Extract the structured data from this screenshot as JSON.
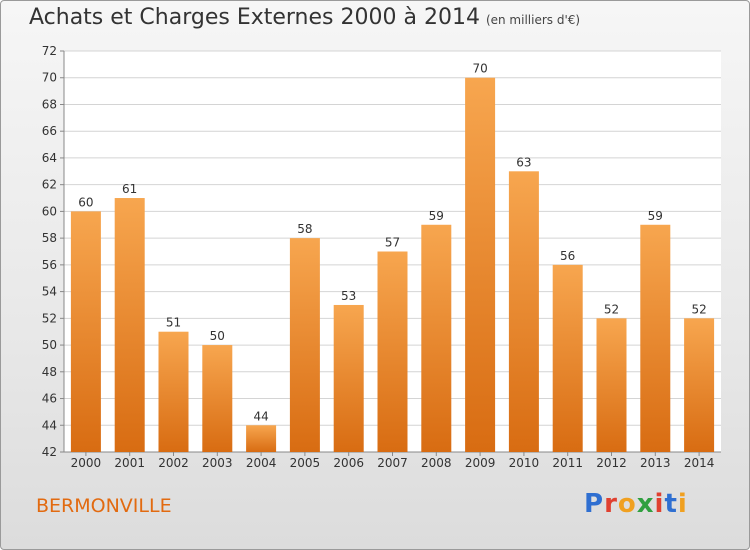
{
  "header": {
    "title": "Achats et Charges Externes 2000 à 2014",
    "subtitle": "(en milliers d'€)"
  },
  "footer": {
    "location": "BERMONVILLE",
    "logo_text": "Proxiti"
  },
  "colors": {
    "bar_light": "#f7a64f",
    "bar_dark": "#d86c12",
    "location_text": "#e26a10",
    "logo_letters": [
      "#2f6fd1",
      "#e04030",
      "#f0a020",
      "#30a040",
      "#e04030",
      "#2f6fd1",
      "#f0a020"
    ]
  },
  "chart_data": {
    "type": "bar",
    "categories": [
      "2000",
      "2001",
      "2002",
      "2003",
      "2004",
      "2005",
      "2006",
      "2007",
      "2008",
      "2009",
      "2010",
      "2011",
      "2012",
      "2013",
      "2014"
    ],
    "values": [
      60,
      61,
      51,
      50,
      44,
      58,
      53,
      57,
      59,
      70,
      63,
      56,
      52,
      59,
      52
    ],
    "ylim": [
      42,
      72
    ],
    "yticks": [
      42,
      44,
      46,
      48,
      50,
      52,
      54,
      56,
      58,
      60,
      62,
      64,
      66,
      68,
      70,
      72
    ],
    "grid": true,
    "xlabel": "",
    "ylabel": ""
  }
}
